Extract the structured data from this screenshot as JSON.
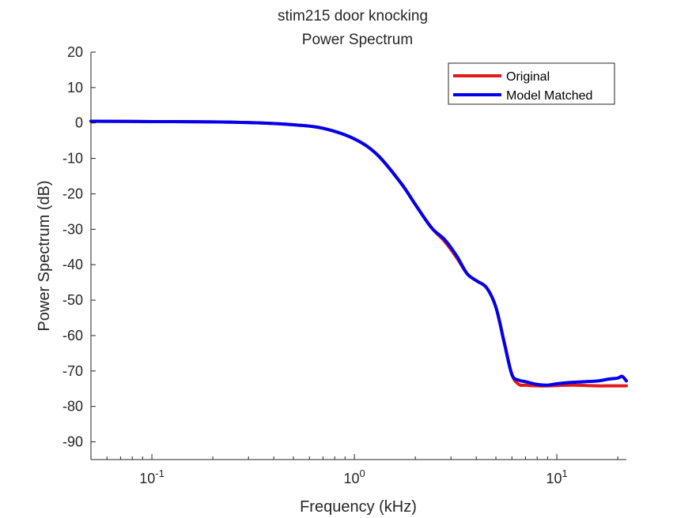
{
  "chart_data": {
    "type": "line",
    "title": "stim215 door knocking",
    "subtitle": "Power Spectrum",
    "xlabel": "Frequency (kHz)",
    "ylabel": "Power Spectrum (dB)",
    "xscale": "log",
    "xlim": [
      0.05,
      22.05
    ],
    "ylim": [
      -95,
      20
    ],
    "yticks": [
      20,
      10,
      0,
      -10,
      -20,
      -30,
      -40,
      -50,
      -60,
      -70,
      -80,
      -90
    ],
    "xticks": [
      {
        "value": 0.1,
        "base": "10",
        "exp": "-1"
      },
      {
        "value": 1,
        "base": "10",
        "exp": "0"
      },
      {
        "value": 10,
        "base": "10",
        "exp": "1"
      }
    ],
    "grid": false,
    "legend_position": "top-right",
    "series": [
      {
        "name": "Original",
        "color": "#e31a1c",
        "x": [
          0.05,
          0.1,
          0.2,
          0.35,
          0.5,
          0.7,
          1.0,
          1.3,
          1.7,
          2.0,
          2.4,
          2.8,
          3.2,
          3.6,
          4.0,
          4.5,
          5.0,
          5.5,
          6.0,
          6.5,
          7.0,
          8.0,
          9.0,
          10.0,
          12.0,
          14.0,
          16.0,
          18.0,
          20.0,
          22.05
        ],
        "y": [
          0.5,
          0.4,
          0.3,
          0.0,
          -0.5,
          -1.5,
          -4.5,
          -9.0,
          -17.0,
          -23.0,
          -29.5,
          -33.5,
          -38.0,
          -42.5,
          -44.5,
          -46.5,
          -52.0,
          -62.0,
          -71.0,
          -73.8,
          -74.0,
          -74.2,
          -74.2,
          -74.1,
          -74.0,
          -74.1,
          -74.2,
          -74.2,
          -74.2,
          -74.2
        ]
      },
      {
        "name": "Model Matched",
        "color": "#0000ee",
        "x": [
          0.05,
          0.1,
          0.2,
          0.35,
          0.5,
          0.7,
          1.0,
          1.3,
          1.7,
          2.0,
          2.4,
          2.8,
          3.2,
          3.6,
          4.0,
          4.5,
          5.0,
          5.5,
          6.0,
          6.5,
          7.0,
          8.0,
          9.0,
          10.0,
          12.0,
          14.0,
          16.0,
          18.0,
          20.0,
          21.0,
          22.05
        ],
        "y": [
          0.5,
          0.4,
          0.3,
          0.0,
          -0.5,
          -1.5,
          -4.5,
          -9.0,
          -17.0,
          -23.0,
          -29.5,
          -33.0,
          -37.5,
          -42.5,
          -44.5,
          -46.5,
          -52.0,
          -62.0,
          -71.0,
          -72.6,
          -73.0,
          -73.8,
          -74.0,
          -73.6,
          -73.2,
          -73.0,
          -72.8,
          -72.3,
          -72.0,
          -71.5,
          -72.8
        ]
      }
    ]
  }
}
